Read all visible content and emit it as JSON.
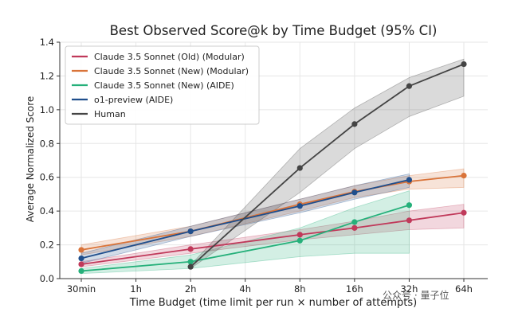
{
  "chart_data": {
    "type": "line",
    "title": "Best Observed Score@k by Time Budget (95% CI)",
    "xlabel": "Time Budget (time limit per run × number of attempts)",
    "ylabel": "Average Normalized Score",
    "categories": [
      "30min",
      "1h",
      "2h",
      "4h",
      "8h",
      "16h",
      "32h",
      "64h"
    ],
    "ylim": [
      0,
      1.4
    ],
    "yticks": [
      "0.0",
      "0.2",
      "0.4",
      "0.6",
      "0.8",
      "1.0",
      "1.2",
      "1.4"
    ],
    "grid": true,
    "legend_position": "top-left",
    "series": [
      {
        "name": "Claude 3.5 Sonnet (Old) (Modular)",
        "color": "#c0395a",
        "points": [
          {
            "x": "30min",
            "y": 0.085
          },
          {
            "x": "2h",
            "y": 0.175
          },
          {
            "x": "8h",
            "y": 0.26
          },
          {
            "x": "16h",
            "y": 0.3
          },
          {
            "x": "32h",
            "y": 0.345
          },
          {
            "x": "64h",
            "y": 0.39
          }
        ],
        "ci_lower": [
          0.07,
          0.15,
          0.23,
          0.26,
          0.29,
          0.3
        ],
        "ci_upper": [
          0.1,
          0.2,
          0.29,
          0.34,
          0.4,
          0.44
        ]
      },
      {
        "name": "Claude 3.5 Sonnet (New) (Modular)",
        "color": "#d9743a",
        "points": [
          {
            "x": "30min",
            "y": 0.17
          },
          {
            "x": "2h",
            "y": 0.28
          },
          {
            "x": "8h",
            "y": 0.44
          },
          {
            "x": "16h",
            "y": 0.515
          },
          {
            "x": "32h",
            "y": 0.575
          },
          {
            "x": "64h",
            "y": 0.61
          }
        ],
        "ci_lower": [
          0.14,
          0.25,
          0.4,
          0.48,
          0.53,
          0.54
        ],
        "ci_upper": [
          0.2,
          0.31,
          0.47,
          0.55,
          0.61,
          0.65
        ]
      },
      {
        "name": "Claude 3.5 Sonnet (New) (AIDE)",
        "color": "#25b07a",
        "points": [
          {
            "x": "30min",
            "y": 0.045
          },
          {
            "x": "2h",
            "y": 0.1
          },
          {
            "x": "8h",
            "y": 0.225
          },
          {
            "x": "16h",
            "y": 0.335
          },
          {
            "x": "32h",
            "y": 0.435
          }
        ],
        "ci_lower": [
          0.03,
          0.06,
          0.13,
          0.15,
          0.15
        ],
        "ci_upper": [
          0.06,
          0.14,
          0.3,
          0.42,
          0.52
        ]
      },
      {
        "name": "o1-preview (AIDE)",
        "color": "#1f4e8c",
        "points": [
          {
            "x": "30min",
            "y": 0.12
          },
          {
            "x": "2h",
            "y": 0.28
          },
          {
            "x": "8h",
            "y": 0.43
          },
          {
            "x": "16h",
            "y": 0.51
          },
          {
            "x": "32h",
            "y": 0.585
          }
        ],
        "ci_lower": [
          0.09,
          0.25,
          0.39,
          0.47,
          0.54
        ],
        "ci_upper": [
          0.15,
          0.31,
          0.47,
          0.55,
          0.62
        ]
      },
      {
        "name": "Human",
        "color": "#444444",
        "points": [
          {
            "x": "2h",
            "y": 0.07
          },
          {
            "x": "8h",
            "y": 0.655
          },
          {
            "x": "16h",
            "y": 0.915
          },
          {
            "x": "32h",
            "y": 1.14
          },
          {
            "x": "64h",
            "y": 1.27
          }
        ],
        "ci_lower": [
          0.06,
          0.51,
          0.77,
          0.96,
          1.08
        ],
        "ci_upper": [
          0.08,
          0.77,
          1.01,
          1.19,
          1.3
        ]
      }
    ]
  },
  "watermark": "公众号 · 量子位"
}
